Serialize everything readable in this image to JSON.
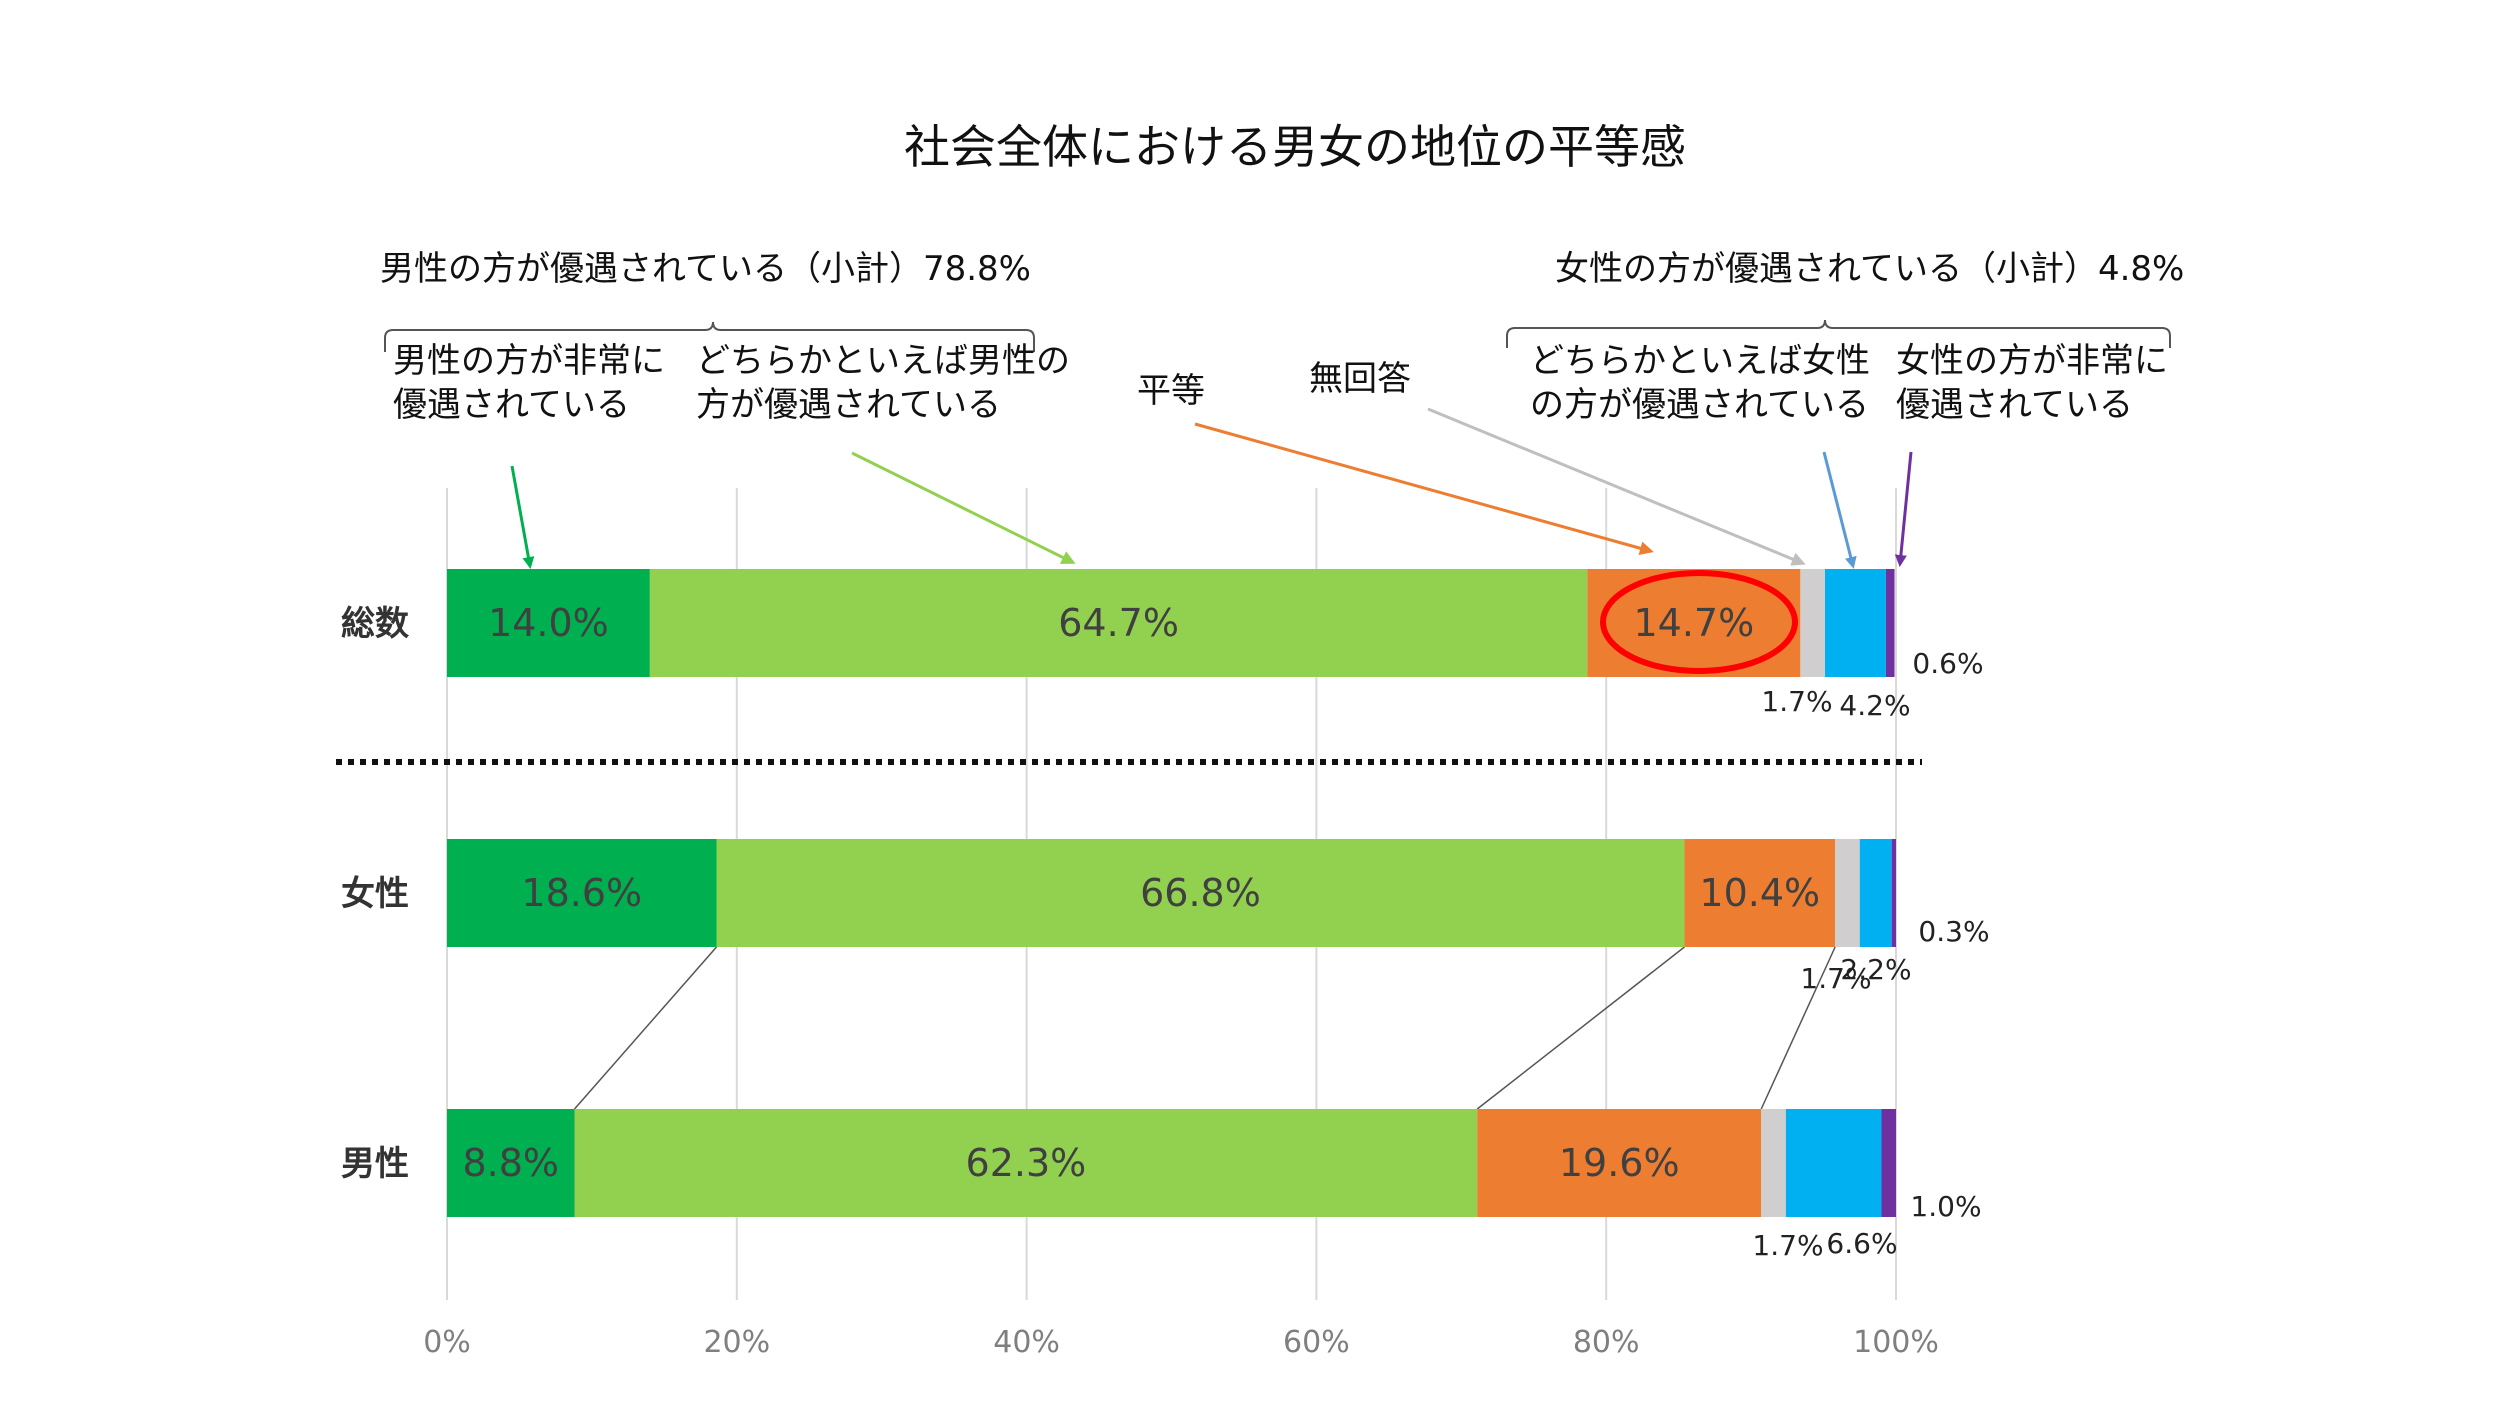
{
  "colors": {
    "strong_male": "#00B050",
    "somewhat_male": "#92D050",
    "equal": "#ED7D31",
    "no_answer": "#D0CECE",
    "somewhat_female": "#00B0F0",
    "strong_female": "#7030A0",
    "highlight_ring": "#FF0000",
    "grid": "#D9D9D9"
  },
  "chart_data": {
    "type": "bar",
    "orientation": "horizontal-stacked",
    "title": "社会全体における男女の地位の平等感",
    "categories": [
      "総数",
      "女性",
      "男性"
    ],
    "series": [
      {
        "name": "男性の方が非常に優遇されている",
        "key": "strong_male",
        "values": [
          14.0,
          18.6,
          8.8
        ]
      },
      {
        "name": "どちらかといえば男性の方が優遇されている",
        "key": "somewhat_male",
        "values": [
          64.7,
          66.8,
          62.3
        ]
      },
      {
        "name": "平等",
        "key": "equal",
        "values": [
          14.7,
          10.4,
          19.6
        ]
      },
      {
        "name": "無回答",
        "key": "no_answer",
        "values": [
          1.7,
          1.7,
          1.7
        ]
      },
      {
        "name": "どちらかといえば女性の方が優遇されている",
        "key": "somewhat_female",
        "values": [
          4.2,
          2.2,
          6.6
        ]
      },
      {
        "name": "女性の方が非常に優遇されている",
        "key": "strong_female",
        "values": [
          0.6,
          0.3,
          1.0
        ]
      }
    ],
    "inside_labels": [
      [
        "14.0%",
        "64.7%",
        "14.7%"
      ],
      [
        "18.6%",
        "66.8%",
        "10.4%"
      ],
      [
        "8.8%",
        "62.3%",
        "19.6%"
      ]
    ],
    "outside_labels": [
      {
        "no_answer": "1.7%",
        "somewhat_female": "4.2%",
        "strong_female": "0.6%"
      },
      {
        "no_answer": "1.7%",
        "somewhat_female": "2.2%",
        "strong_female": "0.3%"
      },
      {
        "no_answer": "1.7%",
        "somewhat_female": "6.6%",
        "strong_female": "1.0%"
      }
    ],
    "x_ticks": [
      "0%",
      "20%",
      "40%",
      "60%",
      "80%",
      "100%"
    ],
    "xlim": [
      0,
      100
    ],
    "grid": true,
    "legend": "callout annotations above the top bar",
    "annotations": {
      "male_subtotal": "男性の方が優遇されている（小計）78.8%",
      "female_subtotal": "女性の方が優遇されている（小計）4.8%",
      "strong_male_line1": "男性の方が非常に",
      "strong_male_line2": "優遇されている",
      "somewhat_male_line1": "どちらかといえば男性の",
      "somewhat_male_line2": "方が優遇されている",
      "equal": "平等",
      "no_answer": "無回答",
      "somewhat_female_line1": "どちらかといえば女性",
      "somewhat_female_line2": "の方が優遇されている",
      "strong_female_line1": "女性の方が非常に",
      "strong_female_line2": "優遇されている"
    }
  }
}
